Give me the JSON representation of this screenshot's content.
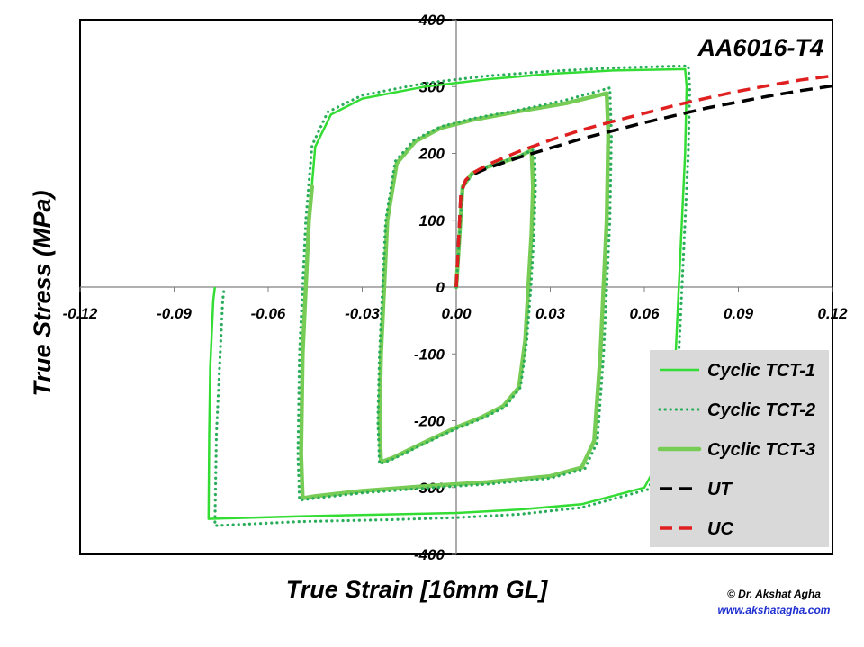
{
  "chart_data": {
    "type": "line",
    "annotation": "AA6016-T4",
    "xlabel": "True Strain [16mm GL]",
    "ylabel": "True Stress (MPa)",
    "xlim": [
      -0.12,
      0.12
    ],
    "ylim": [
      -400,
      400
    ],
    "x_ticks": [
      "-0.12",
      "-0.09",
      "-0.06",
      "-0.03",
      "0.00",
      "0.03",
      "0.06",
      "0.09",
      "0.12"
    ],
    "y_ticks": [
      "400",
      "300",
      "200",
      "100",
      "0",
      "-100",
      "-200",
      "-300",
      "-400"
    ],
    "legend_position": "bottom-right",
    "series": [
      {
        "name": "Cyclic TCT-1",
        "color": "#33dd33",
        "style": "solid",
        "points": [
          [
            0,
            0
          ],
          [
            0.002,
            150
          ],
          [
            0.005,
            170
          ],
          [
            0.01,
            180
          ],
          [
            0.02,
            195
          ],
          [
            0.024,
            205
          ],
          [
            0.0245,
            150
          ],
          [
            0.024,
            80
          ],
          [
            0.023,
            0
          ],
          [
            0.022,
            -80
          ],
          [
            0.02,
            -150
          ],
          [
            0.015,
            -178
          ],
          [
            0.008,
            -195
          ],
          [
            0,
            -210
          ],
          [
            -0.01,
            -232
          ],
          [
            -0.02,
            -255
          ],
          [
            -0.024,
            -262
          ],
          [
            -0.0245,
            -200
          ],
          [
            -0.024,
            -100
          ],
          [
            -0.023,
            0
          ],
          [
            -0.022,
            100
          ],
          [
            -0.019,
            185
          ],
          [
            -0.013,
            218
          ],
          [
            -0.005,
            238
          ],
          [
            0.005,
            250
          ],
          [
            0.02,
            263
          ],
          [
            0.035,
            275
          ],
          [
            0.048,
            290
          ],
          [
            0.0485,
            230
          ],
          [
            0.048,
            100
          ],
          [
            0.047,
            0
          ],
          [
            0.046,
            -100
          ],
          [
            0.044,
            -230
          ],
          [
            0.04,
            -270
          ],
          [
            0.03,
            -283
          ],
          [
            0.01,
            -292
          ],
          [
            -0.01,
            -298
          ],
          [
            -0.03,
            -305
          ],
          [
            -0.045,
            -313
          ],
          [
            -0.049,
            -316
          ],
          [
            -0.0495,
            -250
          ],
          [
            -0.049,
            -100
          ],
          [
            -0.048,
            0
          ],
          [
            -0.047,
            100
          ],
          [
            -0.045,
            210
          ],
          [
            -0.04,
            258
          ],
          [
            -0.03,
            282
          ],
          [
            -0.01,
            300
          ],
          [
            0.01,
            311
          ],
          [
            0.03,
            319
          ],
          [
            0.05,
            324
          ],
          [
            0.073,
            326
          ],
          [
            0.0735,
            300
          ],
          [
            0.073,
            200
          ],
          [
            0.072,
            100
          ],
          [
            0.071,
            0
          ],
          [
            0.07,
            -100
          ],
          [
            0.067,
            -240
          ],
          [
            0.06,
            -300
          ],
          [
            0.04,
            -325
          ],
          [
            0.02,
            -333
          ],
          [
            0,
            -338
          ],
          [
            -0.02,
            -340
          ],
          [
            -0.05,
            -343
          ],
          [
            -0.079,
            -347
          ],
          [
            -0.0788,
            -220
          ],
          [
            -0.0785,
            -120
          ],
          [
            -0.0775,
            -20
          ],
          [
            -0.077,
            0
          ]
        ]
      },
      {
        "name": "Cyclic TCT-2",
        "color": "#2aad5a",
        "style": "dotted",
        "points": [
          [
            0,
            0
          ],
          [
            0.002,
            148
          ],
          [
            0.005,
            168
          ],
          [
            0.01,
            180
          ],
          [
            0.02,
            196
          ],
          [
            0.025,
            206
          ],
          [
            0.0253,
            150
          ],
          [
            0.0248,
            80
          ],
          [
            0.0238,
            0
          ],
          [
            0.0225,
            -80
          ],
          [
            0.0205,
            -150
          ],
          [
            0.0155,
            -180
          ],
          [
            0.008,
            -197
          ],
          [
            0,
            -212
          ],
          [
            -0.01,
            -234
          ],
          [
            -0.02,
            -257
          ],
          [
            -0.0245,
            -265
          ],
          [
            -0.025,
            -200
          ],
          [
            -0.0245,
            -100
          ],
          [
            -0.0235,
            0
          ],
          [
            -0.0225,
            100
          ],
          [
            -0.0195,
            188
          ],
          [
            -0.0135,
            220
          ],
          [
            -0.005,
            240
          ],
          [
            0.005,
            252
          ],
          [
            0.02,
            265
          ],
          [
            0.035,
            280
          ],
          [
            0.049,
            298
          ],
          [
            0.0495,
            230
          ],
          [
            0.049,
            100
          ],
          [
            0.048,
            0
          ],
          [
            0.047,
            -100
          ],
          [
            0.045,
            -232
          ],
          [
            0.041,
            -272
          ],
          [
            0.03,
            -286
          ],
          [
            0.01,
            -295
          ],
          [
            -0.01,
            -301
          ],
          [
            -0.03,
            -308
          ],
          [
            -0.045,
            -316
          ],
          [
            -0.05,
            -319
          ],
          [
            -0.0505,
            -250
          ],
          [
            -0.05,
            -100
          ],
          [
            -0.049,
            0
          ],
          [
            -0.048,
            100
          ],
          [
            -0.046,
            212
          ],
          [
            -0.041,
            262
          ],
          [
            -0.03,
            287
          ],
          [
            -0.01,
            305
          ],
          [
            0.01,
            316
          ],
          [
            0.03,
            323
          ],
          [
            0.05,
            328
          ],
          [
            0.074,
            331
          ],
          [
            0.0745,
            300
          ],
          [
            0.074,
            200
          ],
          [
            0.073,
            100
          ],
          [
            0.072,
            0
          ],
          [
            0.071,
            -100
          ],
          [
            0.068,
            -243
          ],
          [
            0.061,
            -303
          ],
          [
            0.04,
            -330
          ],
          [
            0.02,
            -340
          ],
          [
            0,
            -345
          ],
          [
            -0.02,
            -348
          ],
          [
            -0.05,
            -351
          ],
          [
            -0.077,
            -357
          ],
          [
            -0.0765,
            -220
          ],
          [
            -0.0755,
            -120
          ],
          [
            -0.0745,
            -20
          ],
          [
            -0.074,
            0
          ]
        ]
      },
      {
        "name": "Cyclic TCT-3",
        "color": "#77cc55",
        "style": "thick",
        "points": [
          [
            0,
            0
          ],
          [
            0.002,
            150
          ],
          [
            0.005,
            170
          ],
          [
            0.01,
            180
          ],
          [
            0.02,
            195
          ],
          [
            0.024,
            205
          ],
          [
            0.0245,
            150
          ],
          [
            0.024,
            80
          ],
          [
            0.023,
            0
          ],
          [
            0.022,
            -80
          ],
          [
            0.02,
            -150
          ],
          [
            0.015,
            -178
          ],
          [
            0.008,
            -195
          ],
          [
            0,
            -210
          ],
          [
            -0.01,
            -232
          ],
          [
            -0.02,
            -255
          ],
          [
            -0.024,
            -262
          ],
          [
            -0.0245,
            -200
          ],
          [
            -0.024,
            -100
          ],
          [
            -0.023,
            0
          ],
          [
            -0.022,
            100
          ],
          [
            -0.019,
            185
          ],
          [
            -0.013,
            218
          ],
          [
            -0.005,
            238
          ],
          [
            0.005,
            250
          ],
          [
            0.02,
            263
          ],
          [
            0.035,
            275
          ],
          [
            0.048,
            290
          ],
          [
            0.0485,
            230
          ],
          [
            0.048,
            100
          ],
          [
            0.047,
            0
          ],
          [
            0.046,
            -100
          ],
          [
            0.044,
            -230
          ],
          [
            0.04,
            -270
          ],
          [
            0.03,
            -283
          ],
          [
            0.01,
            -292
          ],
          [
            -0.01,
            -298
          ],
          [
            -0.03,
            -305
          ],
          [
            -0.045,
            -313
          ],
          [
            -0.049,
            -316
          ],
          [
            -0.0495,
            -250
          ],
          [
            -0.049,
            -100
          ],
          [
            -0.048,
            0
          ],
          [
            -0.047,
            100
          ],
          [
            -0.046,
            150
          ]
        ]
      },
      {
        "name": "UT",
        "color": "#000000",
        "style": "dashed",
        "points": [
          [
            0,
            0
          ],
          [
            0.0015,
            140
          ],
          [
            0.003,
            160
          ],
          [
            0.005,
            168
          ],
          [
            0.01,
            178
          ],
          [
            0.02,
            194
          ],
          [
            0.03,
            208
          ],
          [
            0.04,
            222
          ],
          [
            0.05,
            234
          ],
          [
            0.06,
            246
          ],
          [
            0.07,
            257
          ],
          [
            0.08,
            268
          ],
          [
            0.09,
            277
          ],
          [
            0.1,
            286
          ],
          [
            0.11,
            294
          ],
          [
            0.12,
            301
          ]
        ]
      },
      {
        "name": "UC",
        "color": "#e02020",
        "style": "dashed",
        "points": [
          [
            0,
            0
          ],
          [
            0.0015,
            140
          ],
          [
            0.003,
            160
          ],
          [
            0.005,
            170
          ],
          [
            0.01,
            183
          ],
          [
            0.02,
            203
          ],
          [
            0.03,
            220
          ],
          [
            0.04,
            235
          ],
          [
            0.05,
            248
          ],
          [
            0.06,
            260
          ],
          [
            0.07,
            272
          ],
          [
            0.08,
            283
          ],
          [
            0.09,
            293
          ],
          [
            0.1,
            302
          ],
          [
            0.11,
            310
          ],
          [
            0.12,
            316
          ]
        ]
      }
    ]
  },
  "credit": {
    "name": "© Dr. Akshat Agha",
    "url": "www.akshatagha.com"
  }
}
